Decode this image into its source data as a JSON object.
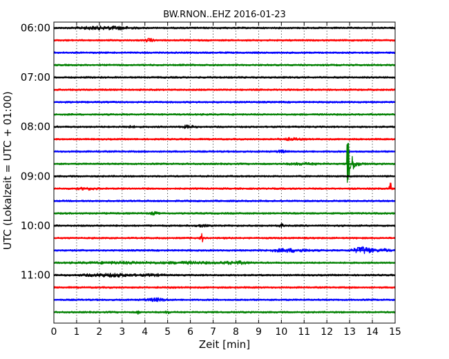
{
  "chart_data": {
    "type": "line",
    "title": "BW.RNON..EHZ 2016-01-23",
    "xlabel": "Zeit  [min]",
    "ylabel": "UTC (Lokalzeit = UTC + 01:00)",
    "xlim": [
      0,
      15
    ],
    "x_ticks": [
      "0",
      "1",
      "2",
      "3",
      "4",
      "5",
      "6",
      "7",
      "8",
      "9",
      "10",
      "11",
      "12",
      "13",
      "14",
      "15"
    ],
    "y_ticks": [
      "06:00",
      "07:00",
      "08:00",
      "09:00",
      "10:00",
      "11:00"
    ],
    "grid": "vertical dotted",
    "trace_interval_min": 15,
    "traces": [
      {
        "start": "06:00",
        "color": "#000000",
        "events": [
          {
            "t": 1.9,
            "a": 2.2,
            "w": 0.6
          },
          {
            "t": 2.9,
            "a": 2.0,
            "w": 0.4
          }
        ]
      },
      {
        "start": "06:15",
        "color": "#ff0000",
        "events": [
          {
            "t": 4.2,
            "a": 2.6,
            "w": 0.12
          }
        ]
      },
      {
        "start": "06:30",
        "color": "#0000ff",
        "events": []
      },
      {
        "start": "06:45",
        "color": "#008000",
        "events": []
      },
      {
        "start": "07:00",
        "color": "#000000",
        "events": []
      },
      {
        "start": "07:15",
        "color": "#ff0000",
        "events": []
      },
      {
        "start": "07:30",
        "color": "#0000ff",
        "events": []
      },
      {
        "start": "07:45",
        "color": "#008000",
        "events": []
      },
      {
        "start": "08:00",
        "color": "#000000",
        "events": [
          {
            "t": 3.3,
            "a": 1.8,
            "w": 0.2
          },
          {
            "t": 5.9,
            "a": 2.2,
            "w": 0.2
          }
        ]
      },
      {
        "start": "08:15",
        "color": "#ff0000",
        "events": [
          {
            "t": 10.4,
            "a": 2.0,
            "w": 0.3
          }
        ]
      },
      {
        "start": "08:30",
        "color": "#0000ff",
        "events": [
          {
            "t": 10.0,
            "a": 2.2,
            "w": 0.12
          }
        ]
      },
      {
        "start": "08:45",
        "color": "#008000",
        "events": [
          {
            "t": 12.9,
            "a": 40,
            "w": 0.35
          },
          {
            "t": 11.0,
            "a": 1.8,
            "w": 0.5
          }
        ]
      },
      {
        "start": "09:00",
        "color": "#000000",
        "events": []
      },
      {
        "start": "09:15",
        "color": "#ff0000",
        "events": [
          {
            "t": 1.5,
            "a": 2.0,
            "w": 0.3
          },
          {
            "t": 14.8,
            "a": 7.0,
            "w": 0.04
          }
        ]
      },
      {
        "start": "09:30",
        "color": "#0000ff",
        "events": []
      },
      {
        "start": "09:45",
        "color": "#008000",
        "events": [
          {
            "t": 4.4,
            "a": 2.4,
            "w": 0.1
          }
        ]
      },
      {
        "start": "10:00",
        "color": "#000000",
        "events": [
          {
            "t": 6.5,
            "a": 2.0,
            "w": 0.15
          },
          {
            "t": 10.0,
            "a": 3.0,
            "w": 0.06
          }
        ]
      },
      {
        "start": "10:15",
        "color": "#ff0000",
        "events": [
          {
            "t": 6.5,
            "a": 6.0,
            "w": 0.04
          }
        ]
      },
      {
        "start": "10:30",
        "color": "#0000ff",
        "events": [
          {
            "t": 10.4,
            "a": 2.5,
            "w": 0.6
          },
          {
            "t": 13.6,
            "a": 4.5,
            "w": 0.3
          },
          {
            "t": 14.5,
            "a": 2.2,
            "w": 0.2
          }
        ]
      },
      {
        "start": "10:45",
        "color": "#008000",
        "events": [
          {
            "t": 3.0,
            "a": 1.8,
            "w": 1.2
          },
          {
            "t": 6.0,
            "a": 1.8,
            "w": 0.8
          },
          {
            "t": 8.0,
            "a": 2.3,
            "w": 0.4
          }
        ]
      },
      {
        "start": "11:00",
        "color": "#000000",
        "events": [
          {
            "t": 2.5,
            "a": 2.4,
            "w": 0.8
          },
          {
            "t": 4.4,
            "a": 1.8,
            "w": 0.3
          }
        ]
      },
      {
        "start": "11:15",
        "color": "#ff0000",
        "events": []
      },
      {
        "start": "11:30",
        "color": "#0000ff",
        "events": [
          {
            "t": 4.5,
            "a": 2.4,
            "w": 0.3
          }
        ]
      },
      {
        "start": "11:45",
        "color": "#008000",
        "events": [
          {
            "t": 3.7,
            "a": 2.4,
            "w": 0.06
          },
          {
            "t": 5.0,
            "a": 2.2,
            "w": 0.06
          }
        ]
      }
    ]
  }
}
